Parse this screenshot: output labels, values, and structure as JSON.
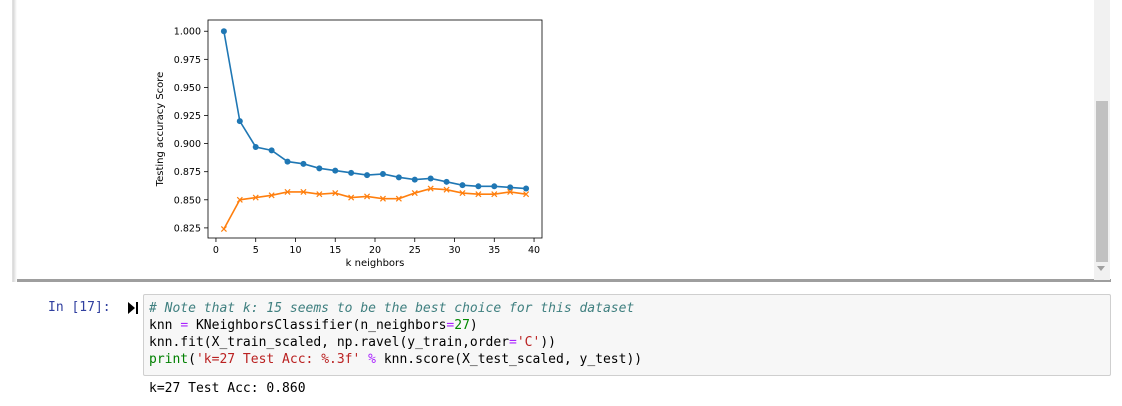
{
  "output_cell": {
    "chart_data": {
      "type": "line",
      "xlabel": "k neighbors",
      "ylabel": "Testing accuracy Score",
      "xlim": [
        -1.0,
        41.0
      ],
      "ylim": [
        0.816,
        1.01
      ],
      "xticks": [
        0,
        5,
        10,
        15,
        20,
        25,
        30,
        35,
        40
      ],
      "yticks": [
        0.825,
        0.85,
        0.875,
        0.9,
        0.925,
        0.95,
        0.975,
        1.0
      ],
      "ytick_labels": [
        "0.825",
        "0.850",
        "0.875",
        "0.900",
        "0.925",
        "0.950",
        "0.975",
        "1.000"
      ],
      "grid": false,
      "series": [
        {
          "color": "#1f77b4",
          "marker": "circle",
          "x": [
            1,
            3,
            5,
            7,
            9,
            11,
            13,
            15,
            17,
            19,
            21,
            23,
            25,
            27,
            29,
            31,
            33,
            35,
            37,
            39
          ],
          "values": [
            1.0,
            0.92,
            0.897,
            0.894,
            0.884,
            0.882,
            0.878,
            0.876,
            0.874,
            0.872,
            0.873,
            0.87,
            0.868,
            0.869,
            0.866,
            0.863,
            0.862,
            0.862,
            0.861,
            0.86
          ]
        },
        {
          "color": "#ff7f0e",
          "marker": "x",
          "x": [
            1,
            3,
            5,
            7,
            9,
            11,
            13,
            15,
            17,
            19,
            21,
            23,
            25,
            27,
            29,
            31,
            33,
            35,
            37,
            39
          ],
          "values": [
            0.824,
            0.85,
            0.852,
            0.854,
            0.857,
            0.857,
            0.855,
            0.856,
            0.852,
            0.853,
            0.851,
            0.851,
            0.856,
            0.86,
            0.859,
            0.856,
            0.855,
            0.855,
            0.857,
            0.855
          ]
        }
      ]
    }
  },
  "code_cell": {
    "prompt": "In [17]:",
    "lines": {
      "comment": "# Note that k: 15 seems to be the best choice for this dataset",
      "l2_a": "knn ",
      "l2_op": "=",
      "l2_b": " KNeighborsClassifier(n_neighbors",
      "l2_op2": "=",
      "l2_num": "27",
      "l2_c": ")",
      "l3_a": "knn.fit(X_train_scaled, np.ravel(y_train,order",
      "l3_op": "=",
      "l3_str": "'C'",
      "l3_c": "))",
      "l4_fn": "print",
      "l4_a": "(",
      "l4_str": "'k=27 Test Acc: %.3f'",
      "l4_b": " ",
      "l4_op": "%",
      "l4_c": " knn.score(X_test_scaled, y_test))"
    },
    "output": "k=27 Test Acc: 0.860"
  }
}
